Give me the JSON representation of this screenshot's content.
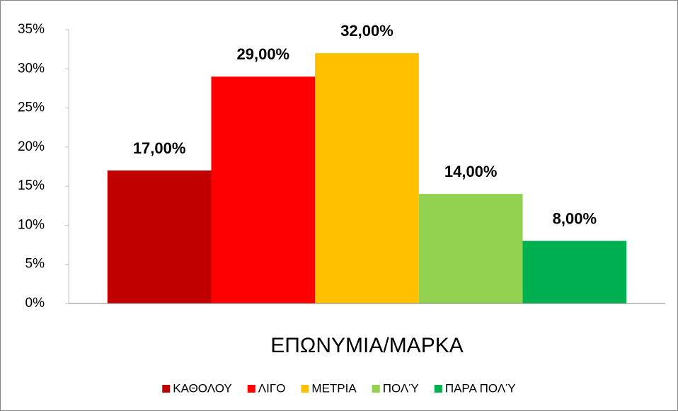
{
  "chart_data": {
    "type": "bar",
    "categories": [
      "ΕΠΩΝΥΜΙΑ/ΜΑΡΚΑ"
    ],
    "series": [
      {
        "name": "ΚΑΘΟΛΟΥ",
        "color": "#C00000",
        "values": [
          17
        ],
        "value_labels": [
          "17,00%"
        ]
      },
      {
        "name": "ΛΙΓΟ",
        "color": "#FF0000",
        "values": [
          29
        ],
        "value_labels": [
          "29,00%"
        ]
      },
      {
        "name": "ΜΕΤΡΙΑ",
        "color": "#FFC000",
        "values": [
          32
        ],
        "value_labels": [
          "32,00%"
        ]
      },
      {
        "name": "ΠΟΛΎ",
        "color": "#92D050",
        "values": [
          14
        ],
        "value_labels": [
          "14,00%"
        ]
      },
      {
        "name": "ΠΑΡΑ ΠΟΛΎ",
        "color": "#00B050",
        "values": [
          8
        ],
        "value_labels": [
          "8,00%"
        ]
      }
    ],
    "ylim": [
      0,
      35
    ],
    "yticks": [
      {
        "value": 0,
        "label": "0%"
      },
      {
        "value": 5,
        "label": "5%"
      },
      {
        "value": 10,
        "label": "10%"
      },
      {
        "value": 15,
        "label": "15%"
      },
      {
        "value": 20,
        "label": "20%"
      },
      {
        "value": 25,
        "label": "25%"
      },
      {
        "value": 30,
        "label": "30%"
      },
      {
        "value": 35,
        "label": "35%"
      }
    ],
    "grid": false,
    "legend": "bottom"
  }
}
